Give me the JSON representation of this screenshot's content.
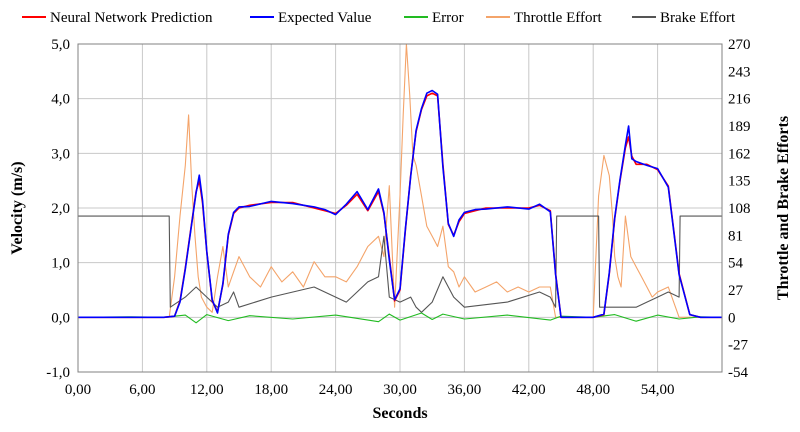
{
  "chart_data": {
    "type": "line",
    "xlabel": "Seconds",
    "ylabel": "Velocity (m/s)",
    "y2label": "Throttle and Brake Efforts",
    "xlim": [
      0,
      60
    ],
    "ylim": [
      -1.0,
      5.0
    ],
    "y2lim": [
      -54,
      270
    ],
    "x_ticks": [
      "0,00",
      "6,00",
      "12,00",
      "18,00",
      "24,00",
      "30,00",
      "36,00",
      "42,00",
      "48,00",
      "54,00"
    ],
    "x_tick_values": [
      0,
      6,
      12,
      18,
      24,
      30,
      36,
      42,
      48,
      54
    ],
    "y_ticks": [
      "-1,0",
      "0,0",
      "1,0",
      "2,0",
      "3,0",
      "4,0",
      "5,0"
    ],
    "y_tick_values": [
      -1,
      0,
      1,
      2,
      3,
      4,
      5
    ],
    "y2_ticks": [
      "-54",
      "-27",
      "0",
      "27",
      "54",
      "81",
      "108",
      "135",
      "162",
      "189",
      "216",
      "243",
      "270"
    ],
    "y2_tick_values": [
      -54,
      -27,
      0,
      27,
      54,
      81,
      108,
      135,
      162,
      189,
      216,
      243,
      270
    ],
    "grid": true,
    "legend_position": "top",
    "series": [
      {
        "name": "Neural Network Prediction",
        "color": "#ff0000",
        "axis": "left",
        "x": [
          0,
          8,
          9,
          9.5,
          10,
          10.5,
          11,
          11.3,
          11.6,
          12,
          12.5,
          13,
          13.5,
          14,
          14.5,
          15,
          16,
          18,
          20,
          22,
          23,
          24,
          25,
          26,
          27,
          28,
          28.5,
          29,
          29.5,
          30,
          30.5,
          31,
          31.5,
          32,
          32.5,
          33,
          33.5,
          34,
          34.5,
          35,
          35.5,
          36,
          37,
          38,
          40,
          42,
          43,
          44,
          44.5,
          45,
          46,
          48,
          49,
          49.5,
          50,
          50.5,
          51,
          51.3,
          51.6,
          52,
          53,
          54,
          55,
          55.5,
          56,
          57,
          58,
          59,
          60
        ],
        "y": [
          0,
          0,
          0.02,
          0.3,
          0.9,
          1.6,
          2.3,
          2.5,
          2.1,
          1.2,
          0.3,
          0.1,
          0.6,
          1.5,
          1.9,
          2.0,
          2.05,
          2.1,
          2.1,
          2.0,
          1.95,
          1.9,
          2.05,
          2.25,
          1.95,
          2.3,
          1.9,
          1.1,
          0.3,
          0.5,
          1.6,
          2.6,
          3.4,
          3.8,
          4.05,
          4.1,
          4.05,
          2.8,
          1.7,
          1.5,
          1.75,
          1.9,
          1.95,
          2.0,
          2.0,
          2.0,
          2.05,
          1.95,
          0.8,
          0,
          0,
          0,
          0.05,
          0.8,
          1.8,
          2.5,
          3.1,
          3.3,
          2.95,
          2.8,
          2.8,
          2.7,
          2.4,
          1.6,
          0.8,
          0.05,
          0,
          0,
          0
        ]
      },
      {
        "name": "Expected Value",
        "color": "#0000ff",
        "axis": "left",
        "x": [
          0,
          8,
          9,
          9.5,
          10,
          10.5,
          11,
          11.3,
          11.6,
          12,
          12.5,
          13,
          13.5,
          14,
          14.5,
          15,
          16,
          18,
          20,
          22,
          23,
          24,
          25,
          26,
          27,
          28,
          28.5,
          29,
          29.5,
          30,
          30.5,
          31,
          31.5,
          32,
          32.5,
          33,
          33.5,
          34,
          34.5,
          35,
          35.5,
          36,
          37,
          38,
          40,
          42,
          43,
          44,
          44.5,
          45,
          46,
          48,
          49,
          49.5,
          50,
          50.5,
          51,
          51.3,
          51.6,
          52,
          53,
          54,
          55,
          55.5,
          56,
          57,
          58,
          59,
          60
        ],
        "y": [
          0,
          0,
          0.02,
          0.28,
          0.88,
          1.58,
          2.28,
          2.6,
          2.15,
          1.2,
          0.32,
          0.08,
          0.62,
          1.52,
          1.92,
          2.02,
          2.03,
          2.12,
          2.08,
          2.02,
          1.97,
          1.88,
          2.07,
          2.3,
          1.97,
          2.35,
          1.92,
          1.05,
          0.32,
          0.52,
          1.62,
          2.58,
          3.42,
          3.82,
          4.1,
          4.15,
          4.08,
          2.75,
          1.72,
          1.48,
          1.78,
          1.92,
          1.97,
          1.98,
          2.02,
          1.98,
          2.07,
          1.93,
          0.78,
          0,
          0,
          0,
          0.06,
          0.82,
          1.82,
          2.52,
          3.15,
          3.5,
          2.9,
          2.85,
          2.78,
          2.72,
          2.38,
          1.58,
          0.78,
          0.05,
          0,
          0,
          0
        ]
      },
      {
        "name": "Error",
        "color": "#22bb22",
        "axis": "left",
        "x": [
          0,
          5,
          8,
          10,
          11,
          12,
          14,
          16,
          20,
          24,
          28,
          29,
          30,
          32,
          33,
          34,
          36,
          40,
          44,
          45,
          48,
          50,
          52,
          54,
          56,
          58,
          60
        ],
        "y": [
          0,
          0.01,
          0,
          0.04,
          -0.1,
          0.05,
          -0.06,
          0.03,
          -0.03,
          0.04,
          -0.08,
          0.06,
          -0.05,
          0.08,
          -0.04,
          0.06,
          -0.03,
          0.04,
          -0.05,
          0.02,
          0,
          0.05,
          -0.07,
          0.04,
          -0.03,
          0.01,
          0
        ]
      },
      {
        "name": "Throttle Effort",
        "color": "#f4a46a",
        "axis": "right",
        "x": [
          0,
          8.5,
          9,
          9.5,
          10,
          10.3,
          10.6,
          10.9,
          11.2,
          11.5,
          12,
          12.5,
          13,
          13.5,
          14,
          14.5,
          15,
          16,
          17,
          18,
          19,
          20,
          21,
          22,
          23,
          24,
          25,
          26,
          27,
          28,
          28.5,
          29,
          29.5,
          30,
          30.3,
          30.6,
          30.9,
          31.2,
          31.5,
          32,
          32.5,
          33,
          33.5,
          34,
          34.5,
          35,
          35.5,
          36,
          37,
          38,
          39,
          40,
          41,
          42,
          43,
          44,
          44.5,
          45,
          48,
          48.5,
          49,
          49.5,
          49.8,
          50,
          50.3,
          50.6,
          51,
          51.5,
          52,
          52.5,
          53,
          53.5,
          54,
          55,
          56,
          60
        ],
        "y": [
          0,
          0,
          40,
          100,
          150,
          200,
          130,
          80,
          40,
          20,
          10,
          5,
          40,
          70,
          30,
          45,
          60,
          40,
          30,
          50,
          35,
          45,
          30,
          55,
          40,
          40,
          35,
          50,
          70,
          80,
          60,
          130,
          10,
          120,
          200,
          270,
          220,
          160,
          150,
          120,
          90,
          80,
          70,
          90,
          50,
          45,
          30,
          40,
          25,
          30,
          35,
          25,
          30,
          25,
          30,
          30,
          0,
          0,
          0,
          120,
          160,
          140,
          100,
          60,
          40,
          30,
          100,
          60,
          50,
          40,
          30,
          20,
          25,
          30,
          0,
          0
        ]
      },
      {
        "name": "Brake Effort",
        "color": "#555555",
        "axis": "right",
        "x": [
          0,
          8.5,
          8.6,
          10,
          11,
          12,
          13,
          14,
          14.5,
          15,
          18,
          22,
          25,
          26,
          27,
          28,
          28.5,
          29,
          30,
          31,
          31.5,
          32,
          33,
          34,
          35,
          36,
          40,
          43,
          44,
          44.5,
          44.6,
          48.5,
          48.6,
          52,
          53,
          54,
          55,
          56,
          56.1,
          60
        ],
        "y": [
          100,
          100,
          10,
          20,
          30,
          20,
          10,
          15,
          25,
          10,
          20,
          30,
          15,
          25,
          35,
          40,
          80,
          20,
          15,
          20,
          10,
          5,
          15,
          40,
          20,
          10,
          15,
          25,
          20,
          10,
          100,
          100,
          10,
          10,
          15,
          20,
          25,
          20,
          100,
          100
        ]
      }
    ]
  }
}
